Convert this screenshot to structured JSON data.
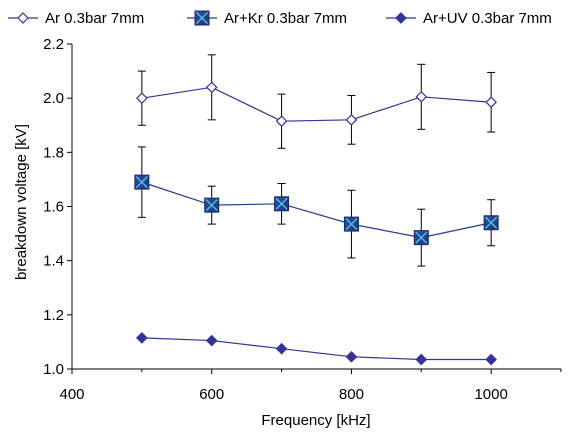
{
  "chart_data": {
    "type": "line",
    "xlabel": "Frequency [kHz]",
    "ylabel": "breakdown voltage [kV]",
    "xlim": [
      400,
      1100
    ],
    "ylim": [
      1.0,
      2.2
    ],
    "x_ticks": [
      "400",
      "600",
      "800",
      "1000"
    ],
    "y_ticks": [
      "1.0",
      "1.2",
      "1.4",
      "1.6",
      "1.8",
      "2.0",
      "2.2"
    ],
    "grid": false,
    "legend_position": "top",
    "x": [
      500,
      600,
      700,
      800,
      900,
      1000
    ],
    "series": [
      {
        "name": "Ar 0.3bar 7mm",
        "marker": "open-diamond",
        "color": "#33339a",
        "values": [
          2.0,
          2.04,
          1.915,
          1.92,
          2.005,
          1.985
        ],
        "error": [
          0.1,
          0.12,
          0.1,
          0.09,
          0.12,
          0.11
        ]
      },
      {
        "name": "Ar+Kr 0.3bar 7mm",
        "marker": "square-x",
        "color": "#2a3a8c",
        "values": [
          1.69,
          1.605,
          1.61,
          1.535,
          1.485,
          1.54
        ],
        "error": [
          0.13,
          0.07,
          0.075,
          0.125,
          0.105,
          0.085
        ]
      },
      {
        "name": "Ar+UV 0.3bar 7mm",
        "marker": "filled-diamond",
        "color": "#33339a",
        "values": [
          1.115,
          1.105,
          1.075,
          1.045,
          1.035,
          1.035
        ],
        "error": null
      }
    ]
  }
}
